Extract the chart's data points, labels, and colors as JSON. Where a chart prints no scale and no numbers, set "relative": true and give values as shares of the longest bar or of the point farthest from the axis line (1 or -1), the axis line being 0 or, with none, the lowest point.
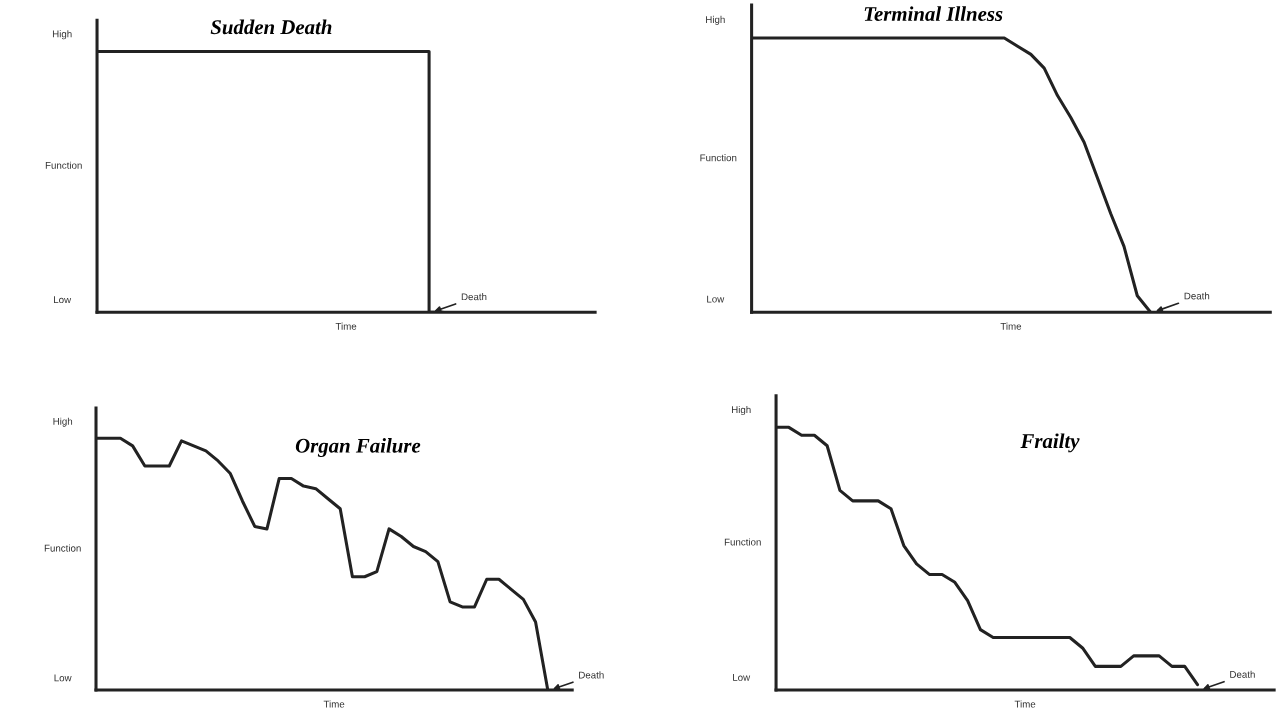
{
  "chart_data": [
    {
      "type": "step",
      "relative": true,
      "title": "Sudden Death",
      "xlabel": "Time",
      "ylabel": "Function",
      "categories": [
        null,
        null,
        null,
        null,
        null,
        null,
        null,
        null,
        null,
        null,
        null,
        null,
        null,
        null,
        null,
        null,
        null,
        null,
        null,
        null,
        null,
        null,
        null,
        null,
        null,
        null,
        null,
        null,
        null,
        null,
        null,
        null,
        null,
        null,
        null,
        null,
        null,
        null,
        null,
        null
      ],
      "annotations": [
        "High",
        "Low",
        "Death"
      ],
      "series": [
        {
          "color": "#222222",
          "values": [
            1,
            1,
            1,
            1,
            1,
            1,
            1,
            1,
            1,
            1,
            1,
            1,
            1,
            1,
            1,
            1,
            1,
            1,
            1,
            1,
            1,
            1,
            1,
            1,
            1,
            1,
            0,
            null,
            null,
            null,
            null,
            null,
            null,
            null,
            null,
            null,
            null,
            null,
            null,
            null
          ]
        }
      ]
    },
    {
      "type": "line",
      "relative": true,
      "title": "Terminal Illness",
      "xlabel": "Time",
      "ylabel": "Function",
      "categories": [
        null,
        null,
        null,
        null,
        null,
        null,
        null,
        null,
        null,
        null,
        null,
        null,
        null,
        null,
        null,
        null,
        null,
        null,
        null,
        null,
        null,
        null,
        null,
        null,
        null,
        null,
        null,
        null,
        null,
        null,
        null,
        null,
        null,
        null,
        null,
        null,
        null,
        null,
        null,
        null
      ],
      "annotations": [
        "High",
        "Low",
        "Death"
      ],
      "series": [
        {
          "color": "#222222",
          "values": [
            1,
            1,
            1,
            1,
            1,
            1,
            1,
            1,
            1,
            1,
            1,
            1,
            1,
            1,
            1,
            1,
            1,
            1,
            1,
            1,
            0.97,
            0.94,
            0.89,
            0.79,
            0.71,
            0.62,
            0.49,
            0.36,
            0.24,
            0.06,
            0,
            null,
            null,
            null,
            null,
            null,
            null,
            null,
            null,
            null
          ]
        }
      ]
    },
    {
      "type": "line",
      "relative": true,
      "title": "Organ Failure",
      "xlabel": "Time",
      "ylabel": "Function",
      "categories": [
        null,
        null,
        null,
        null,
        null,
        null,
        null,
        null,
        null,
        null,
        null,
        null,
        null,
        null,
        null,
        null,
        null,
        null,
        null,
        null,
        null,
        null,
        null,
        null,
        null,
        null,
        null,
        null,
        null,
        null,
        null,
        null,
        null,
        null,
        null,
        null,
        null,
        null,
        null,
        null
      ],
      "annotations": [
        "High",
        "Low",
        "Death"
      ],
      "series": [
        {
          "color": "#222222",
          "values": [
            1,
            1,
            1,
            0.97,
            0.89,
            0.89,
            0.89,
            0.99,
            0.97,
            0.95,
            0.91,
            0.86,
            0.75,
            0.65,
            0.64,
            0.84,
            0.84,
            0.81,
            0.8,
            0.76,
            0.72,
            0.45,
            0.45,
            0.47,
            0.64,
            0.61,
            0.57,
            0.55,
            0.51,
            0.35,
            0.33,
            0.33,
            0.44,
            0.44,
            0.4,
            0.36,
            0.27,
            0,
            null,
            null
          ]
        }
      ]
    },
    {
      "type": "line",
      "relative": true,
      "title": "Frailty",
      "xlabel": "Time",
      "ylabel": "Function",
      "categories": [
        null,
        null,
        null,
        null,
        null,
        null,
        null,
        null,
        null,
        null,
        null,
        null,
        null,
        null,
        null,
        null,
        null,
        null,
        null,
        null,
        null,
        null,
        null,
        null,
        null,
        null,
        null,
        null,
        null,
        null,
        null,
        null,
        null,
        null,
        null,
        null,
        null,
        null,
        null,
        null
      ],
      "annotations": [
        "High",
        "Low",
        "Death"
      ],
      "series": [
        {
          "color": "#222222",
          "values": [
            1,
            1,
            0.97,
            0.97,
            0.93,
            0.76,
            0.72,
            0.72,
            0.72,
            0.69,
            0.55,
            0.48,
            0.44,
            0.44,
            0.41,
            0.34,
            0.23,
            0.2,
            0.2,
            0.2,
            0.2,
            0.2,
            0.2,
            0.2,
            0.16,
            0.09,
            0.09,
            0.09,
            0.13,
            0.13,
            0.13,
            0.09,
            0.09,
            0.02,
            null,
            null,
            null,
            null,
            null,
            null
          ]
        }
      ]
    }
  ]
}
